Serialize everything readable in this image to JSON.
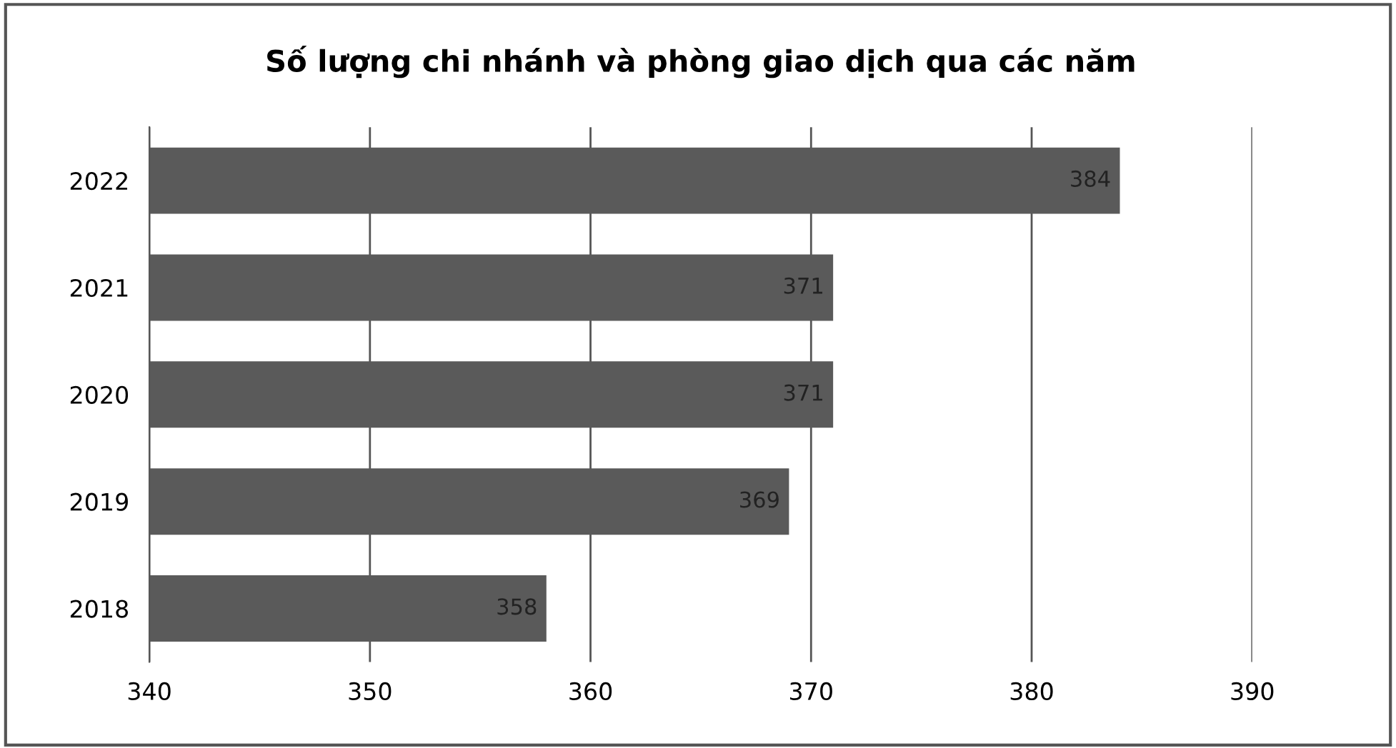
{
  "chart_data": {
    "type": "bar",
    "orientation": "horizontal",
    "title": "Số lượng chi nhánh và phòng giao dịch qua các năm",
    "categories": [
      "2022",
      "2021",
      "2020",
      "2019",
      "2018"
    ],
    "values": [
      384,
      371,
      371,
      369,
      358
    ],
    "color": "#5a5a5a",
    "xlim": [
      340,
      390
    ],
    "xticks": [
      340,
      350,
      360,
      370,
      380,
      390
    ],
    "grid": "x",
    "data_labels": true
  }
}
